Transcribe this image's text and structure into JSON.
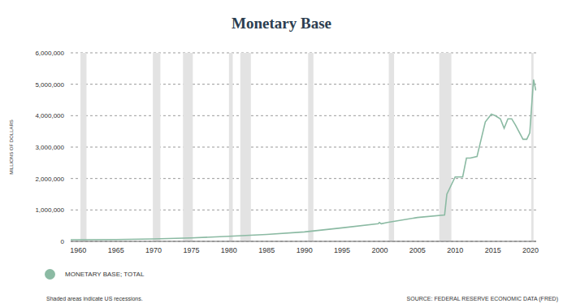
{
  "chart_data": {
    "type": "line",
    "title": "Monetary Base",
    "y_label": "MILLIONS OF DOLLARS",
    "note": "Shaded areas indicate US recessions.",
    "source": "SOURCE: FEDERAL RESERVE ECONOMIC DATA (FRED)",
    "x": [
      1959,
      1965,
      1970,
      1975,
      1980,
      1985,
      1990,
      1995,
      1999.8,
      1999.95,
      2000.2,
      2001,
      2005,
      2008.6,
      2008.9,
      2009.3,
      2010,
      2011,
      2011.5,
      2012,
      2012.9,
      2013.5,
      2014,
      2014.8,
      2015.3,
      2016,
      2016.5,
      2017,
      2017.5,
      2018,
      2019,
      2019.5,
      2019.9,
      2020.2,
      2020.4,
      2020.7
    ],
    "series": [
      {
        "name": "MONETARY BASE; TOTAL",
        "color": "#8bbaa3",
        "values": [
          50000,
          60000,
          76000,
          110000,
          160000,
          220000,
          300000,
          430000,
          560000,
          600000,
          560000,
          600000,
          760000,
          840000,
          1500000,
          1700000,
          2050000,
          2050000,
          2650000,
          2650000,
          2700000,
          3300000,
          3800000,
          4050000,
          4000000,
          3900000,
          3600000,
          3900000,
          3900000,
          3700000,
          3250000,
          3250000,
          3450000,
          4500000,
          5150000,
          4800000
        ]
      }
    ],
    "xlim": [
      1959,
      2020.75
    ],
    "xticks": [
      1960,
      1965,
      1970,
      1975,
      1980,
      1985,
      1990,
      1995,
      2000,
      2005,
      2010,
      2015,
      2020
    ],
    "ylim": [
      0,
      6000000
    ],
    "yticks": [
      0,
      {
        "value": 1000000,
        "label": "1,000,000"
      },
      {
        "value": 2000000,
        "label": "2,000,000"
      },
      {
        "value": 3000000,
        "label": "3,000,000"
      },
      {
        "value": 4000000,
        "label": "4,000,000"
      },
      {
        "value": 5000000,
        "label": "5,000,000"
      },
      {
        "value": 6000000,
        "label": "6,000,000"
      }
    ],
    "recessions": [
      {
        "start": 1960.3,
        "end": 1961.1
      },
      {
        "start": 1969.9,
        "end": 1970.9
      },
      {
        "start": 1973.9,
        "end": 1975.2
      },
      {
        "start": 1980.0,
        "end": 1980.5
      },
      {
        "start": 1981.5,
        "end": 1982.9
      },
      {
        "start": 1990.5,
        "end": 1991.2
      },
      {
        "start": 2001.2,
        "end": 2001.9
      },
      {
        "start": 2007.9,
        "end": 2009.5
      },
      {
        "start": 2020.1,
        "end": 2020.4
      }
    ],
    "grid": true,
    "legend": "bottom"
  }
}
